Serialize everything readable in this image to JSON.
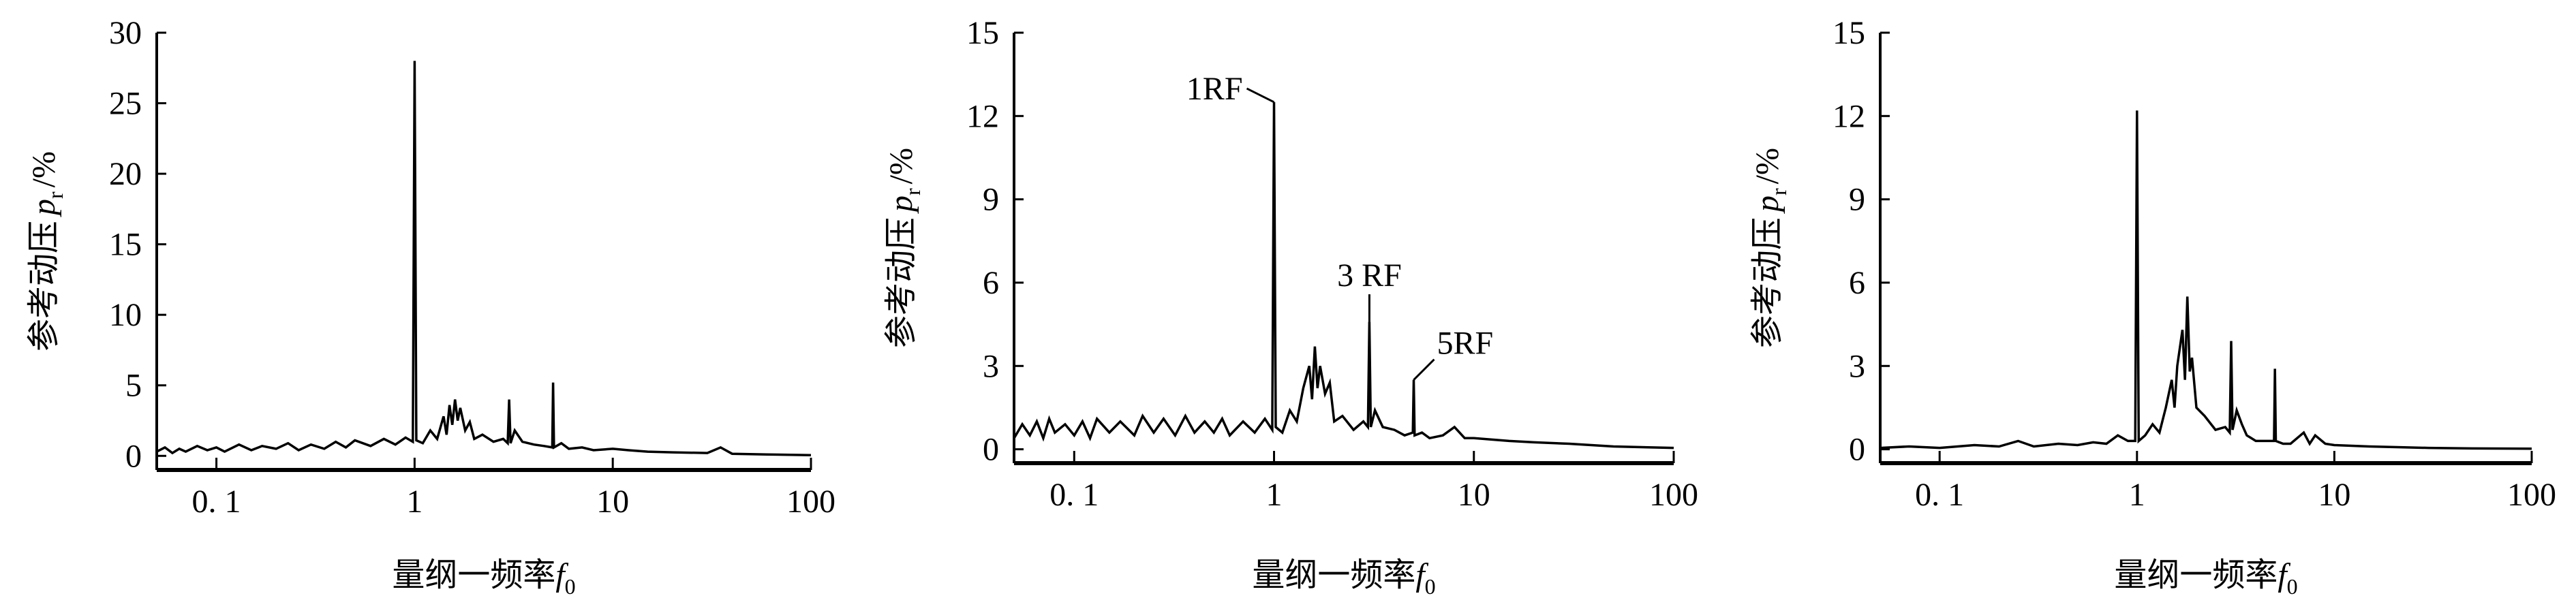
{
  "chart_data": [
    {
      "type": "line",
      "color": "#000000",
      "xlabel": {
        "text": "量纲一频率",
        "var": "f",
        "sub": "0"
      },
      "ylabel": {
        "text": "参考动压",
        "var": "p",
        "sub": "r",
        "unit": "/%"
      },
      "log_x": true,
      "xlim": [
        0.05,
        100
      ],
      "ylim": [
        -1,
        30
      ],
      "xticks": [
        {
          "value": 0.1,
          "label": "0. 1"
        },
        1,
        10,
        100
      ],
      "yticks": [
        0,
        5,
        10,
        15,
        20,
        25,
        30
      ],
      "x": [
        0.05,
        0.055,
        0.06,
        0.065,
        0.07,
        0.08,
        0.09,
        0.1,
        0.11,
        0.13,
        0.15,
        0.17,
        0.2,
        0.23,
        0.26,
        0.3,
        0.35,
        0.4,
        0.45,
        0.5,
        0.6,
        0.7,
        0.8,
        0.9,
        0.98,
        1,
        1.02,
        1.1,
        1.2,
        1.3,
        1.4,
        1.45,
        1.5,
        1.55,
        1.6,
        1.65,
        1.7,
        1.8,
        1.9,
        2,
        2.2,
        2.5,
        2.8,
        2.95,
        3,
        3.05,
        3.2,
        3.5,
        4,
        4.5,
        4.95,
        5,
        5.05,
        5.5,
        6,
        7,
        8,
        10,
        12,
        15,
        20,
        30,
        35,
        40,
        60,
        100
      ],
      "values": [
        0.3,
        0.6,
        0.2,
        0.5,
        0.3,
        0.7,
        0.4,
        0.6,
        0.3,
        0.8,
        0.4,
        0.7,
        0.5,
        0.9,
        0.4,
        0.8,
        0.5,
        1.0,
        0.6,
        1.1,
        0.7,
        1.2,
        0.8,
        1.3,
        1.0,
        28,
        1.1,
        0.9,
        1.8,
        1.2,
        2.8,
        1.5,
        3.6,
        2.2,
        4.0,
        2.5,
        3.4,
        1.8,
        2.4,
        1.2,
        1.5,
        1.0,
        1.2,
        0.9,
        4.0,
        0.9,
        1.8,
        1.0,
        0.8,
        0.7,
        0.6,
        5.2,
        0.6,
        0.9,
        0.5,
        0.6,
        0.4,
        0.5,
        0.4,
        0.3,
        0.25,
        0.2,
        0.6,
        0.15,
        0.1,
        0.05
      ]
    },
    {
      "type": "line",
      "color": "#000000",
      "xlabel": {
        "text": "量纲一频率",
        "var": "f",
        "sub": "0"
      },
      "ylabel": {
        "text": "参考动压",
        "var": "p",
        "sub": "r",
        "unit": "/%"
      },
      "log_x": true,
      "xlim": [
        0.05,
        100
      ],
      "ylim": [
        -0.5,
        15
      ],
      "xticks": [
        {
          "value": 0.1,
          "label": "0. 1"
        },
        1,
        10,
        100
      ],
      "yticks": [
        0,
        3,
        6,
        9,
        12,
        15
      ],
      "x": [
        0.05,
        0.055,
        0.06,
        0.065,
        0.07,
        0.075,
        0.08,
        0.09,
        0.1,
        0.11,
        0.12,
        0.13,
        0.15,
        0.17,
        0.2,
        0.22,
        0.25,
        0.28,
        0.32,
        0.36,
        0.4,
        0.45,
        0.5,
        0.55,
        0.6,
        0.7,
        0.8,
        0.9,
        0.98,
        1,
        1.02,
        1.1,
        1.2,
        1.3,
        1.4,
        1.5,
        1.55,
        1.6,
        1.65,
        1.7,
        1.8,
        1.9,
        2,
        2.2,
        2.5,
        2.8,
        2.95,
        3,
        3.05,
        3.2,
        3.5,
        4,
        4.5,
        4.95,
        5,
        5.05,
        5.5,
        6,
        7,
        8,
        9,
        10,
        15,
        20,
        30,
        50,
        100
      ],
      "values": [
        0.4,
        0.9,
        0.5,
        1.0,
        0.4,
        1.1,
        0.6,
        0.9,
        0.5,
        1.0,
        0.4,
        1.1,
        0.6,
        1.0,
        0.5,
        1.2,
        0.6,
        1.1,
        0.5,
        1.2,
        0.6,
        1.0,
        0.6,
        1.1,
        0.5,
        1.0,
        0.6,
        1.1,
        0.7,
        12.5,
        0.8,
        0.6,
        1.4,
        1.0,
        2.2,
        3.0,
        1.8,
        3.7,
        2.2,
        3.0,
        2.0,
        2.4,
        1.0,
        1.2,
        0.7,
        1.0,
        0.8,
        4.6,
        0.8,
        1.4,
        0.8,
        0.7,
        0.5,
        0.6,
        2.5,
        0.5,
        0.6,
        0.4,
        0.5,
        0.8,
        0.4,
        0.4,
        0.3,
        0.25,
        0.2,
        0.1,
        0.05
      ],
      "annotations": [
        {
          "text": "1RF",
          "x": 1,
          "y": 12.5,
          "side": "left"
        },
        {
          "text": "3 RF",
          "x": 3,
          "y": 4.6,
          "side": "up"
        },
        {
          "text": "5RF",
          "x": 5,
          "y": 2.5,
          "side": "right"
        }
      ]
    },
    {
      "type": "line",
      "color": "#000000",
      "xlabel": {
        "text": "量纲一频率",
        "var": "f",
        "sub": "0"
      },
      "ylabel": {
        "text": "参考动压",
        "var": "p",
        "sub": "r",
        "unit": "/%"
      },
      "log_x": true,
      "xlim": [
        0.05,
        100
      ],
      "ylim": [
        -0.5,
        15
      ],
      "xticks": [
        {
          "value": 0.1,
          "label": "0. 1"
        },
        1,
        10,
        100
      ],
      "yticks": [
        0,
        3,
        6,
        9,
        12,
        15
      ],
      "x": [
        0.05,
        0.07,
        0.1,
        0.15,
        0.2,
        0.25,
        0.3,
        0.4,
        0.5,
        0.6,
        0.7,
        0.8,
        0.9,
        0.98,
        1,
        1.02,
        1.1,
        1.2,
        1.3,
        1.4,
        1.5,
        1.55,
        1.6,
        1.7,
        1.75,
        1.8,
        1.85,
        1.9,
        2,
        2.2,
        2.5,
        2.8,
        2.95,
        3,
        3.05,
        3.2,
        3.4,
        3.6,
        4,
        4.5,
        4.95,
        5,
        5.05,
        5.5,
        6,
        7,
        7.5,
        8,
        9,
        10,
        15,
        20,
        30,
        50,
        100
      ],
      "values": [
        0.05,
        0.1,
        0.05,
        0.15,
        0.1,
        0.3,
        0.1,
        0.2,
        0.15,
        0.25,
        0.2,
        0.5,
        0.3,
        0.3,
        12.2,
        0.3,
        0.5,
        0.9,
        0.6,
        1.5,
        2.5,
        1.5,
        3.0,
        4.3,
        2.5,
        5.5,
        2.8,
        3.3,
        1.5,
        1.2,
        0.7,
        0.8,
        0.6,
        3.9,
        0.7,
        1.4,
        0.9,
        0.5,
        0.3,
        0.3,
        0.3,
        2.9,
        0.3,
        0.2,
        0.2,
        0.6,
        0.2,
        0.5,
        0.2,
        0.15,
        0.1,
        0.08,
        0.05,
        0.03,
        0.02
      ]
    }
  ]
}
